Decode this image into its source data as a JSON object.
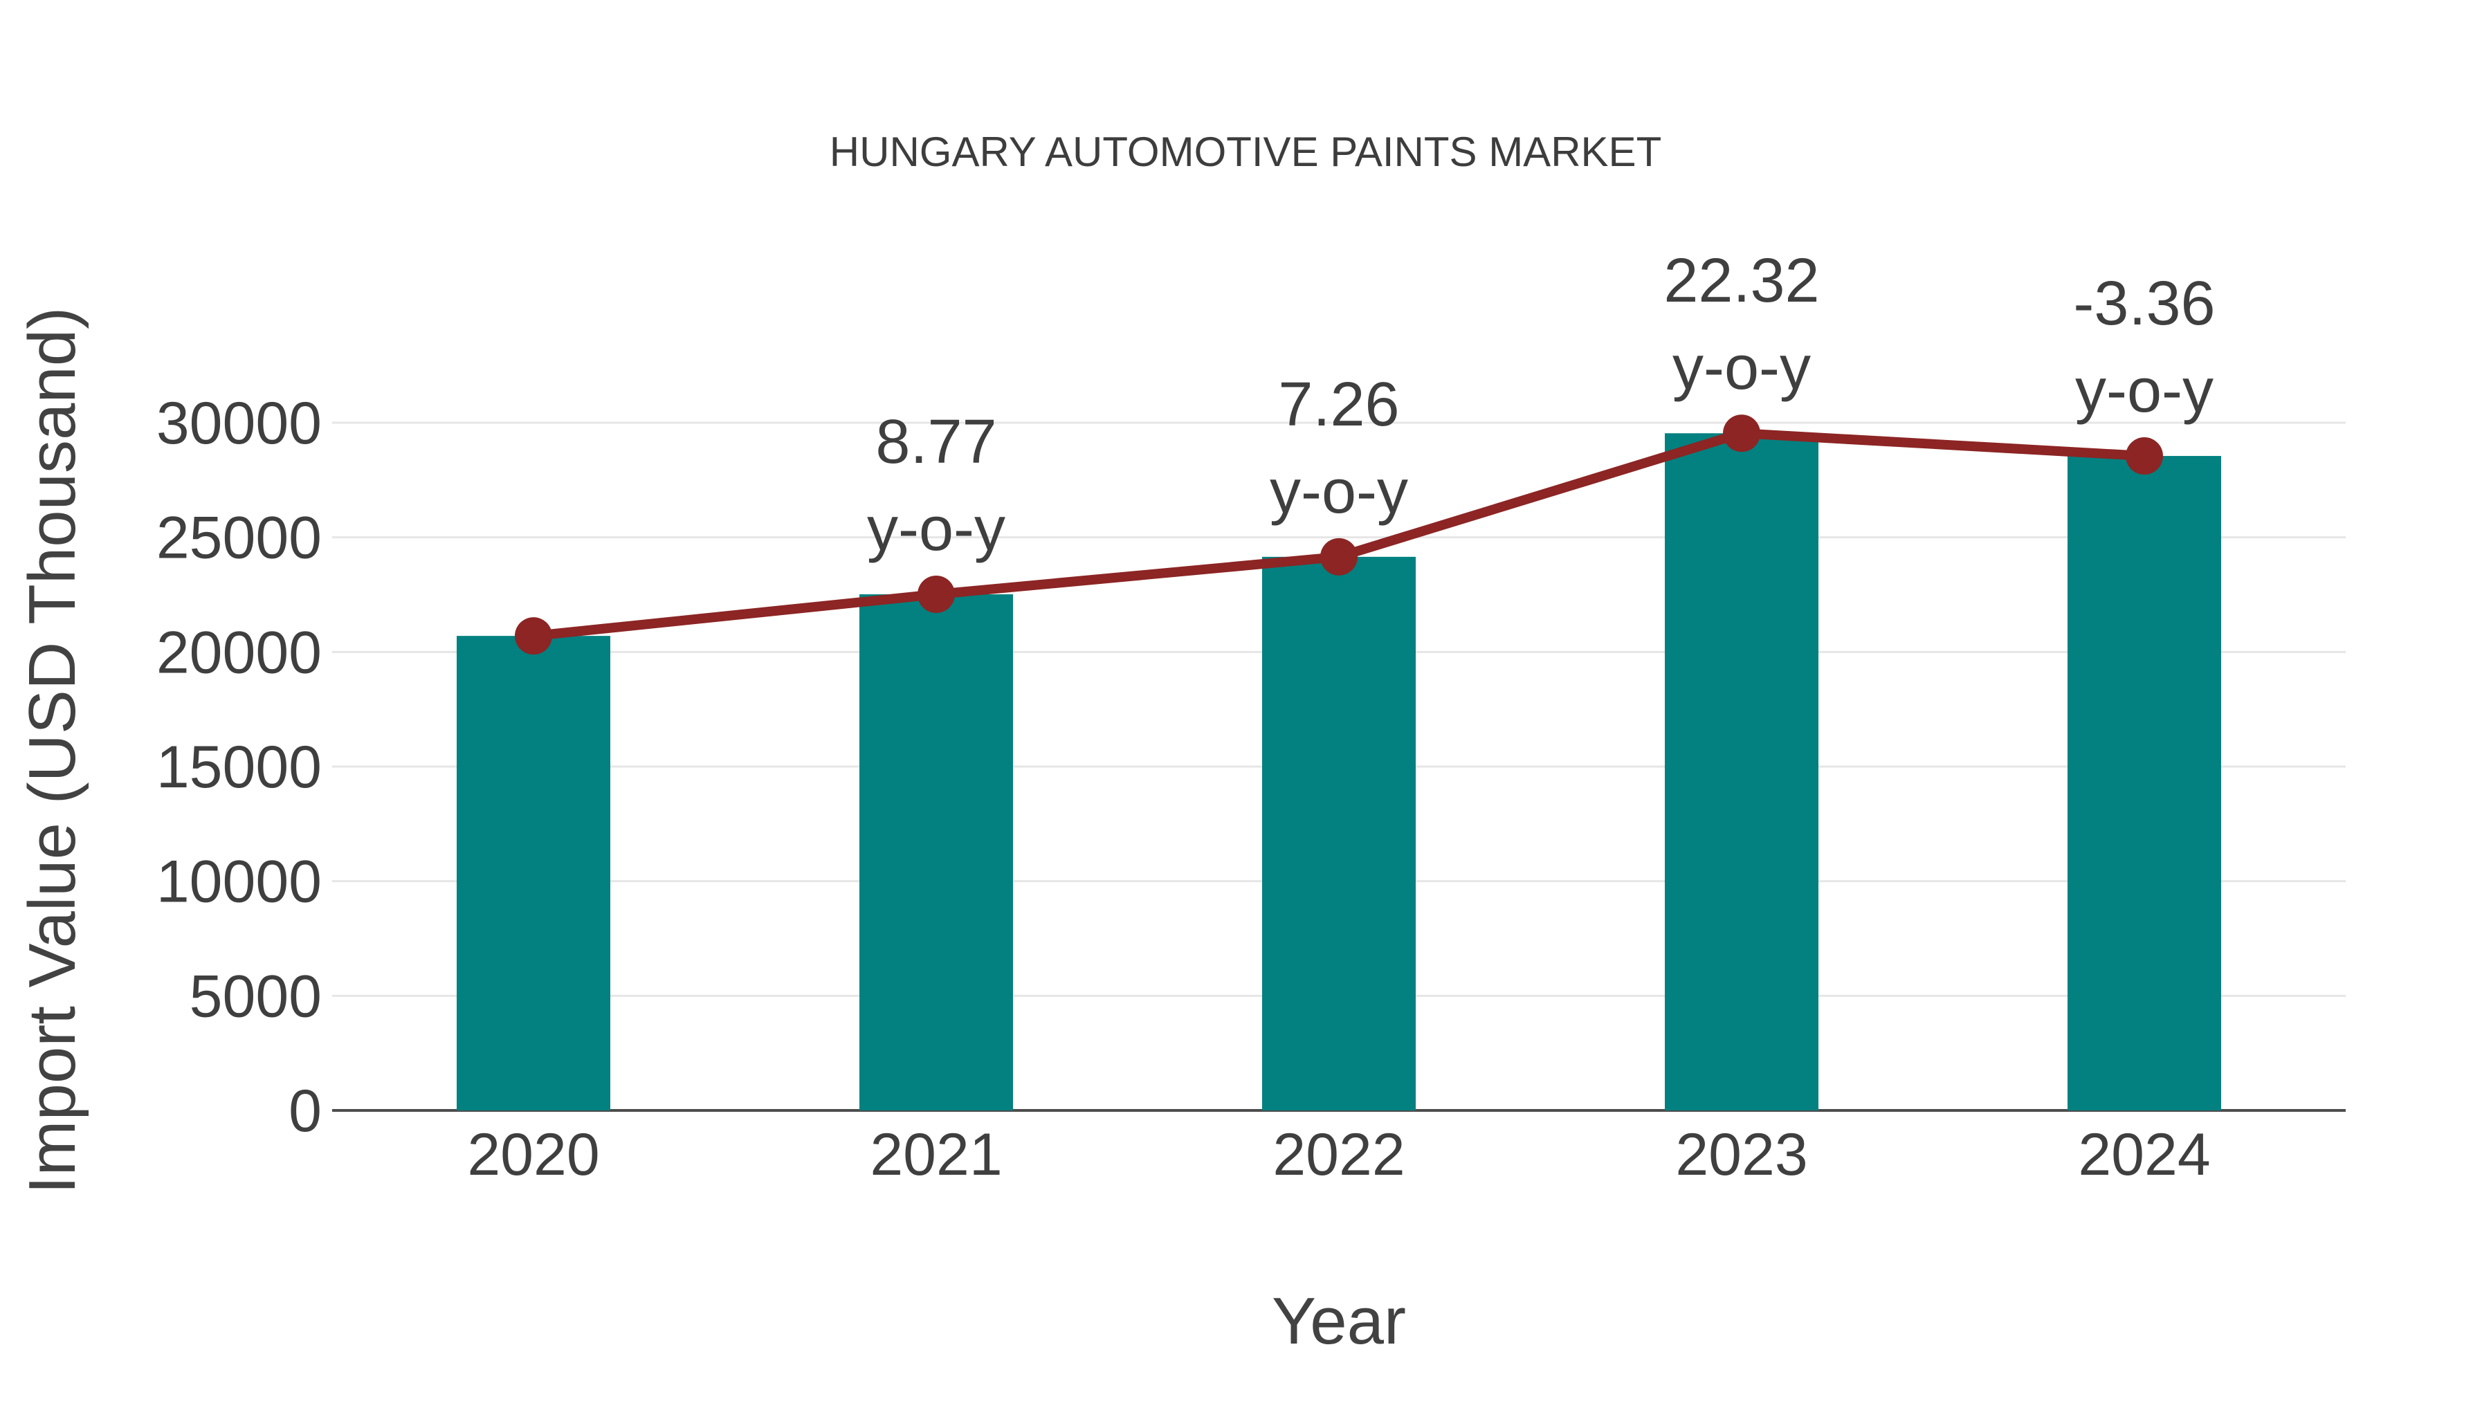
{
  "title": "HUNGARY AUTOMOTIVE PAINTS MARKET",
  "chart_data": {
    "type": "bar",
    "subtype": "bar-with-line-overlay",
    "categories": [
      "2020",
      "2021",
      "2022",
      "2023",
      "2024"
    ],
    "series": [
      {
        "name": "Import Value bars",
        "type": "bar",
        "values": [
          20700,
          22515,
          24150,
          29540,
          28550
        ]
      },
      {
        "name": "Import Value trend line",
        "type": "line",
        "values": [
          20700,
          22515,
          24150,
          29540,
          28550
        ]
      }
    ],
    "yoy_percent": [
      null,
      8.77,
      7.26,
      22.32,
      -3.36
    ],
    "annotations": [
      {
        "category": "2021",
        "value_text": "8.77",
        "label": "y-o-y"
      },
      {
        "category": "2022",
        "value_text": "7.26",
        "label": "y-o-y"
      },
      {
        "category": "2023",
        "value_text": "22.32",
        "label": "y-o-y"
      },
      {
        "category": "2024",
        "value_text": "-3.36",
        "label": "y-o-y"
      }
    ],
    "title": "HUNGARY AUTOMOTIVE PAINTS MARKET",
    "xlabel": "Year",
    "ylabel": "Import Value (USD Thousand)",
    "ylim": [
      0,
      30000
    ],
    "yticks": [
      0,
      5000,
      10000,
      15000,
      20000,
      25000,
      30000
    ],
    "grid": true,
    "legend": "none"
  },
  "colors": {
    "bar": "#028180",
    "line": "#8c2524",
    "marker": "#8c2524",
    "grid": "#e6e6e6",
    "axis": "#4d4d4d",
    "text": "#3f3f3f",
    "background": "#ffffff"
  }
}
